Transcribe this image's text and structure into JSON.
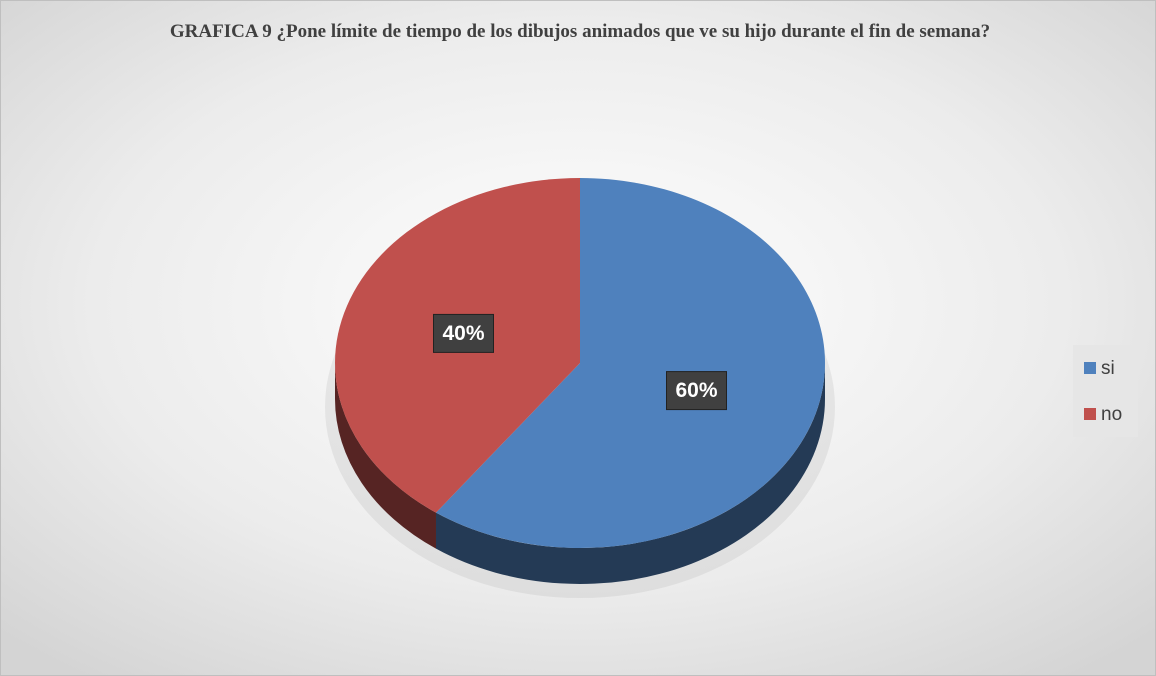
{
  "chart_data": {
    "type": "pie",
    "title": "GRAFICA 9 ¿Pone límite de tiempo de los dibujos animados  que ve su hijo durante el fin de semana?",
    "categories": [
      "si",
      "no"
    ],
    "values": [
      60,
      40
    ],
    "value_labels": [
      "60%",
      "40%"
    ],
    "colors": [
      "#4f81bd",
      "#c0504d"
    ],
    "legend": "right"
  }
}
